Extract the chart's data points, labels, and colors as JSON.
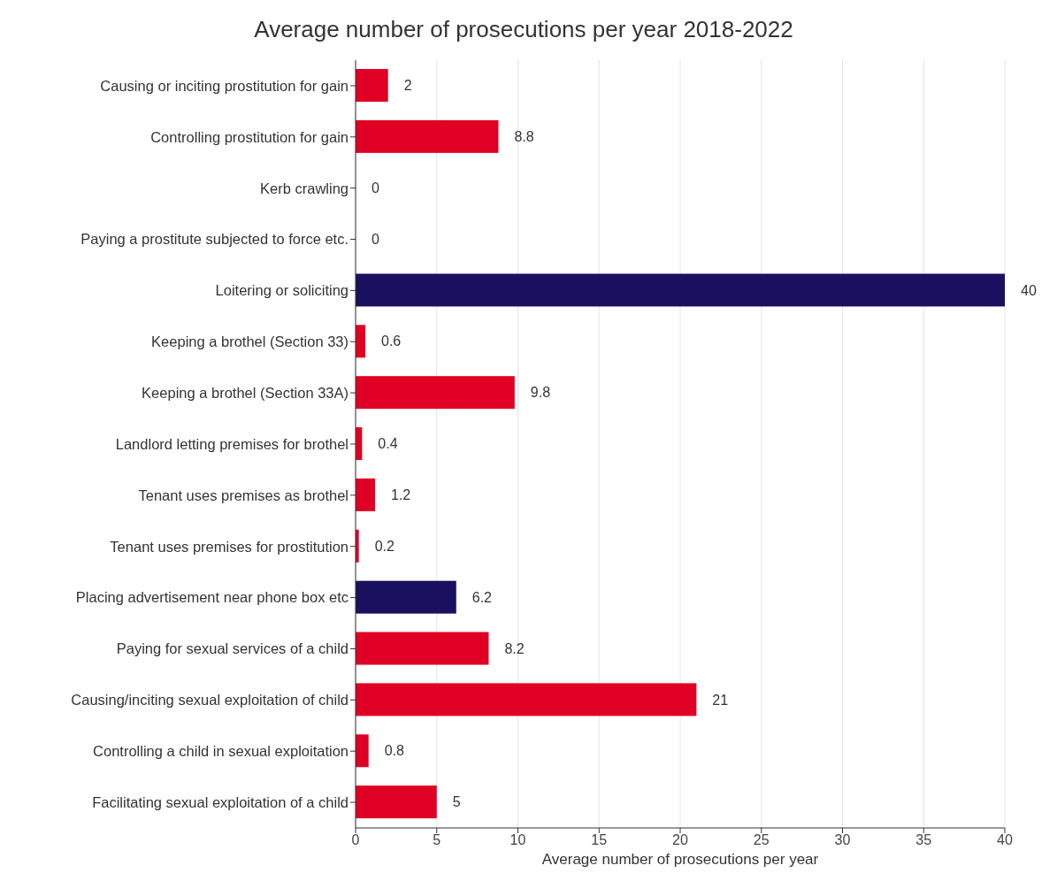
{
  "chart_data": {
    "type": "bar",
    "orientation": "horizontal",
    "title": "Average number of prosecutions per year 2018-2022",
    "xlabel": "Average number of prosecutions per year",
    "categories": [
      "Causing or inciting prostitution for gain",
      "Controlling prostitution for gain",
      "Kerb crawling",
      "Paying a prostitute subjected to force etc.",
      "Loitering or soliciting",
      "Keeping a brothel (Section 33)",
      "Keeping a brothel (Section 33A)",
      "Landlord letting premises for brothel",
      "Tenant uses premises as brothel",
      "Tenant uses premises for prostitution",
      "Placing advertisement near phone box etc",
      "Paying for sexual services of a child",
      "Causing/inciting sexual exploitation of child",
      "Controlling a child in sexual exploitation",
      "Facilitating sexual exploitation of a child"
    ],
    "values": [
      2,
      8.8,
      0,
      0,
      40,
      0.6,
      9.8,
      0.4,
      1.2,
      0.2,
      6.2,
      8.2,
      21,
      0.8,
      5
    ],
    "colors": [
      "#e00024",
      "#e00024",
      "#e00024",
      "#e00024",
      "#1a1060",
      "#e00024",
      "#e00024",
      "#e00024",
      "#e00024",
      "#e00024",
      "#1a1060",
      "#e00024",
      "#e00024",
      "#e00024",
      "#e00024"
    ],
    "xlim": [
      0,
      40
    ],
    "xticks": [
      0,
      5,
      10,
      15,
      20,
      25,
      30,
      35,
      40
    ],
    "grid": "x",
    "data_labels": true
  }
}
